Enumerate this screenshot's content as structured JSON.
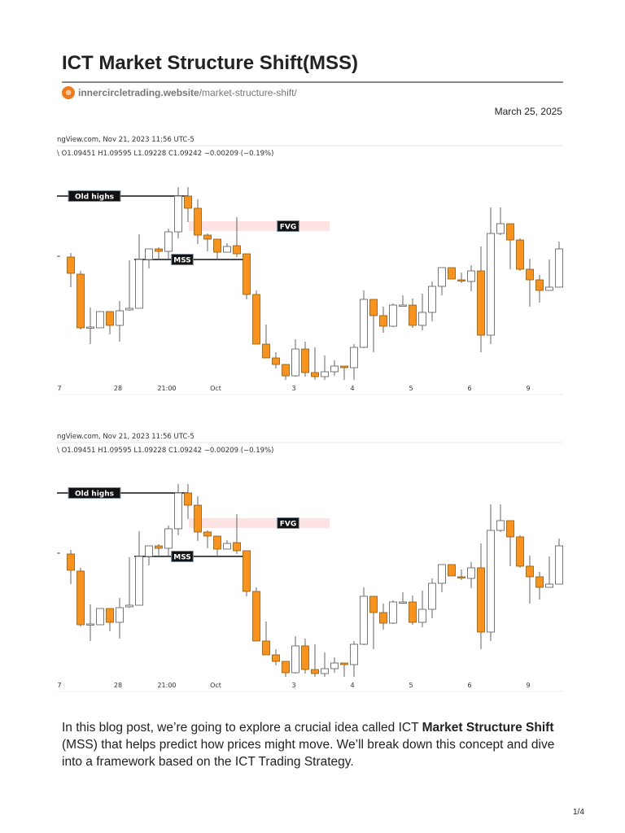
{
  "title": "ICT Market Structure Shift(MSS)",
  "source": {
    "domain": "innercircletrading.website",
    "path": "/market-structure-shift/",
    "icon": "site-logo-icon"
  },
  "date": "March 25, 2025",
  "body": {
    "prefix": "In this blog post, we’re going to explore a crucial idea called ICT ",
    "bold": "Market Structure Shift",
    "suffix": " (MSS) that helps predict how prices might move. We’ll break down this concept and dive into a framework based on the ICT Trading Strategy."
  },
  "page_number": "1/4",
  "colors": {
    "bear": "#f7931e",
    "bull": "#ffffff",
    "fvg": "#fde3e3",
    "label_bg": "#111111"
  },
  "chart_data": {
    "type": "candlestick",
    "header": "ngView.com, Nov 21, 2023 11:56 UTC-5",
    "ohlc_line": "\\ O1.09451  H1.09595  L1.09228  C1.09242  −0.00209 (−0.19%)",
    "ylim": [
      0,
      245
    ],
    "x_ticks": [
      {
        "label": "7",
        "index": -1
      },
      {
        "label": "28",
        "index": 5
      },
      {
        "label": "21:00",
        "index": 10
      },
      {
        "label": "Oct",
        "index": 15
      },
      {
        "label": "3",
        "index": 23
      },
      {
        "label": "4",
        "index": 29
      },
      {
        "label": "5",
        "index": 35
      },
      {
        "label": "6",
        "index": 41
      },
      {
        "label": "9",
        "index": 47
      }
    ],
    "annotations": [
      {
        "label": "Old highs",
        "level": 229,
        "from": -1,
        "to": 12,
        "kind": "line"
      },
      {
        "label": "MSS",
        "level": 151,
        "from": 7,
        "to": 18,
        "kind": "line"
      },
      {
        "label": "FVG",
        "top": 198,
        "bottom": 186,
        "from": 12,
        "to": 26,
        "kind": "zone"
      }
    ],
    "candles": [
      [
        154,
        159,
        117,
        134
      ],
      [
        133,
        137,
        65,
        67
      ],
      [
        68,
        92,
        47,
        68
      ],
      [
        67,
        87,
        67,
        87
      ],
      [
        87,
        87,
        59,
        70
      ],
      [
        70,
        100,
        50,
        88
      ],
      [
        89,
        150,
        88,
        91
      ],
      [
        91,
        182,
        91,
        151
      ],
      [
        151,
        164,
        140,
        164
      ],
      [
        164,
        166,
        151,
        161
      ],
      [
        161,
        189,
        151,
        185
      ],
      [
        185,
        240,
        177,
        229
      ],
      [
        229,
        240,
        197,
        214
      ],
      [
        214,
        225,
        170,
        181
      ],
      [
        181,
        183,
        161,
        176
      ],
      [
        176,
        176,
        151,
        160
      ],
      [
        160,
        171,
        160,
        167
      ],
      [
        168,
        203,
        154,
        158
      ],
      [
        158,
        158,
        102,
        108
      ],
      [
        108,
        113,
        47,
        47
      ],
      [
        47,
        71,
        30,
        30
      ],
      [
        30,
        37,
        17,
        22
      ],
      [
        22,
        22,
        3,
        8
      ],
      [
        8,
        53,
        7,
        41
      ],
      [
        41,
        50,
        7,
        12
      ],
      [
        12,
        43,
        3,
        7
      ],
      [
        7,
        33,
        3,
        13
      ],
      [
        13,
        27,
        8,
        20
      ],
      [
        20,
        20,
        3,
        18
      ],
      [
        18,
        47,
        3,
        43
      ],
      [
        43,
        113,
        42,
        102
      ],
      [
        102,
        102,
        37,
        82
      ],
      [
        82,
        93,
        61,
        69
      ],
      [
        69,
        97,
        68,
        95
      ],
      [
        95,
        107,
        94,
        95
      ],
      [
        95,
        103,
        67,
        70
      ],
      [
        70,
        109,
        64,
        86
      ],
      [
        86,
        124,
        75,
        118
      ],
      [
        118,
        141,
        107,
        141
      ],
      [
        141,
        141,
        127,
        127
      ],
      [
        126,
        135,
        122,
        125
      ],
      [
        124,
        144,
        112,
        137
      ],
      [
        137,
        167,
        37,
        58
      ],
      [
        58,
        215,
        47,
        183
      ],
      [
        183,
        215,
        181,
        195
      ],
      [
        195,
        195,
        139,
        175
      ],
      [
        175,
        177,
        137,
        139
      ],
      [
        139,
        152,
        93,
        126
      ],
      [
        126,
        132,
        98,
        113
      ],
      [
        113,
        151,
        113,
        117
      ],
      [
        117,
        173,
        117,
        164
      ]
    ]
  }
}
